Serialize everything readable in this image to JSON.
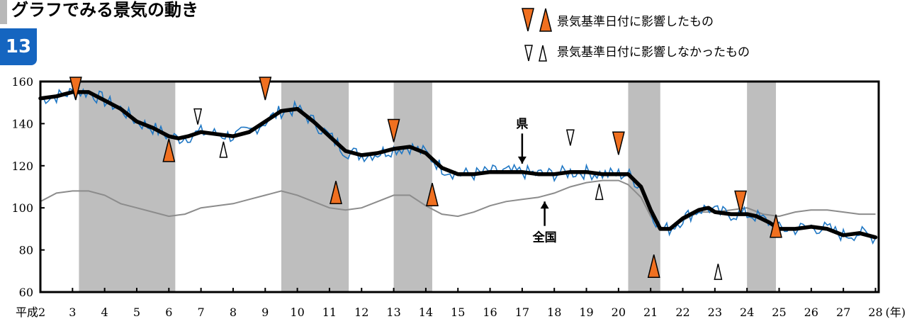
{
  "page": {
    "title": "グラフでみる景気の動き",
    "figure_number": "13"
  },
  "colors": {
    "recession_band": "#bebebe",
    "prefecture_raw": "#1f77c4",
    "prefecture_trend": "#000000",
    "national": "#8c8c8c",
    "marker_filled": "#f07020"
  },
  "legend": {
    "filled_label": "景気基準日付に影響したもの",
    "hollow_label": "景気基準日付に影響しなかったもの"
  },
  "chart_data": {
    "type": "line",
    "xlabel_unit": "(年)",
    "ylim": [
      60,
      160
    ],
    "xlim": [
      2.0,
      28.1
    ],
    "y_ticks": [
      60,
      80,
      100,
      120,
      140,
      160
    ],
    "x_ticks": [
      {
        "v": 2,
        "label": "平成2"
      },
      {
        "v": 3,
        "label": "3"
      },
      {
        "v": 4,
        "label": "4"
      },
      {
        "v": 5,
        "label": "5"
      },
      {
        "v": 6,
        "label": "6"
      },
      {
        "v": 7,
        "label": "7"
      },
      {
        "v": 8,
        "label": "8"
      },
      {
        "v": 9,
        "label": "9"
      },
      {
        "v": 10,
        "label": "10"
      },
      {
        "v": 11,
        "label": "11"
      },
      {
        "v": 12,
        "label": "12"
      },
      {
        "v": 13,
        "label": "13"
      },
      {
        "v": 14,
        "label": "14"
      },
      {
        "v": 15,
        "label": "15"
      },
      {
        "v": 16,
        "label": "16"
      },
      {
        "v": 17,
        "label": "17"
      },
      {
        "v": 18,
        "label": "18"
      },
      {
        "v": 19,
        "label": "19"
      },
      {
        "v": 20,
        "label": "20"
      },
      {
        "v": 21,
        "label": "21"
      },
      {
        "v": 22,
        "label": "22"
      },
      {
        "v": 23,
        "label": "23"
      },
      {
        "v": 24,
        "label": "24"
      },
      {
        "v": 25,
        "label": "25"
      },
      {
        "v": 26,
        "label": "26"
      },
      {
        "v": 27,
        "label": "27"
      },
      {
        "v": 28,
        "label": "28"
      }
    ],
    "shaded_periods": [
      [
        3.2,
        6.2
      ],
      [
        9.5,
        11.6
      ],
      [
        13.0,
        14.2
      ],
      [
        20.3,
        21.3
      ],
      [
        24.0,
        24.9
      ]
    ],
    "series": [
      {
        "name": "県",
        "style": "trend",
        "points": [
          [
            2.0,
            152
          ],
          [
            2.5,
            153
          ],
          [
            3.0,
            155
          ],
          [
            3.5,
            155
          ],
          [
            4.0,
            151
          ],
          [
            4.5,
            147
          ],
          [
            5.0,
            141
          ],
          [
            5.5,
            138
          ],
          [
            6.0,
            134
          ],
          [
            6.3,
            133
          ],
          [
            6.6,
            134
          ],
          [
            7.0,
            136
          ],
          [
            7.5,
            135
          ],
          [
            8.0,
            134
          ],
          [
            8.5,
            136
          ],
          [
            9.0,
            141
          ],
          [
            9.5,
            146
          ],
          [
            10.0,
            147
          ],
          [
            10.5,
            141
          ],
          [
            11.0,
            134
          ],
          [
            11.5,
            127
          ],
          [
            12.0,
            125
          ],
          [
            12.5,
            126
          ],
          [
            13.0,
            128
          ],
          [
            13.5,
            129
          ],
          [
            14.0,
            126
          ],
          [
            14.5,
            119
          ],
          [
            15.0,
            116
          ],
          [
            15.5,
            116
          ],
          [
            16.0,
            117
          ],
          [
            16.5,
            117
          ],
          [
            17.0,
            117
          ],
          [
            17.5,
            116
          ],
          [
            18.0,
            116
          ],
          [
            18.5,
            117
          ],
          [
            19.0,
            117
          ],
          [
            19.5,
            116
          ],
          [
            20.0,
            116
          ],
          [
            20.3,
            116
          ],
          [
            20.7,
            110
          ],
          [
            21.0,
            99
          ],
          [
            21.3,
            90
          ],
          [
            21.6,
            90
          ],
          [
            22.0,
            95
          ],
          [
            22.5,
            99
          ],
          [
            22.8,
            100
          ],
          [
            23.0,
            98
          ],
          [
            23.5,
            97
          ],
          [
            24.0,
            97
          ],
          [
            24.3,
            96
          ],
          [
            24.7,
            93
          ],
          [
            25.0,
            90
          ],
          [
            25.5,
            90
          ],
          [
            26.0,
            91
          ],
          [
            26.5,
            90
          ],
          [
            27.0,
            87
          ],
          [
            27.5,
            88
          ],
          [
            28.0,
            86
          ]
        ]
      },
      {
        "name": "全国",
        "style": "national",
        "points": [
          [
            2.0,
            103
          ],
          [
            2.5,
            107
          ],
          [
            3.0,
            108
          ],
          [
            3.5,
            108
          ],
          [
            4.0,
            106
          ],
          [
            4.5,
            102
          ],
          [
            5.0,
            100
          ],
          [
            5.5,
            98
          ],
          [
            6.0,
            96
          ],
          [
            6.5,
            97
          ],
          [
            7.0,
            100
          ],
          [
            7.5,
            101
          ],
          [
            8.0,
            102
          ],
          [
            8.5,
            104
          ],
          [
            9.0,
            106
          ],
          [
            9.5,
            108
          ],
          [
            10.0,
            106
          ],
          [
            10.5,
            103
          ],
          [
            11.0,
            100
          ],
          [
            11.5,
            99
          ],
          [
            12.0,
            100
          ],
          [
            12.5,
            103
          ],
          [
            13.0,
            106
          ],
          [
            13.5,
            106
          ],
          [
            14.0,
            101
          ],
          [
            14.5,
            97
          ],
          [
            15.0,
            96
          ],
          [
            15.5,
            98
          ],
          [
            16.0,
            101
          ],
          [
            16.5,
            103
          ],
          [
            17.0,
            104
          ],
          [
            17.5,
            105
          ],
          [
            18.0,
            107
          ],
          [
            18.5,
            110
          ],
          [
            19.0,
            112
          ],
          [
            19.5,
            113
          ],
          [
            20.0,
            113
          ],
          [
            20.3,
            111
          ],
          [
            20.7,
            105
          ],
          [
            21.0,
            96
          ],
          [
            21.3,
            90
          ],
          [
            21.6,
            90
          ],
          [
            22.0,
            94
          ],
          [
            22.5,
            98
          ],
          [
            23.0,
            98
          ],
          [
            23.5,
            99
          ],
          [
            24.0,
            100
          ],
          [
            24.5,
            97
          ],
          [
            25.0,
            96
          ],
          [
            25.5,
            98
          ],
          [
            26.0,
            99
          ],
          [
            26.5,
            99
          ],
          [
            27.0,
            98
          ],
          [
            27.5,
            97
          ],
          [
            28.0,
            97
          ]
        ]
      }
    ],
    "markers": [
      {
        "x": 3.1,
        "y": 162,
        "dir": "down",
        "filled": true
      },
      {
        "x": 6.0,
        "y": 122,
        "dir": "up",
        "filled": true
      },
      {
        "x": 9.0,
        "y": 162,
        "dir": "down",
        "filled": true
      },
      {
        "x": 11.2,
        "y": 102,
        "dir": "up",
        "filled": true
      },
      {
        "x": 13.0,
        "y": 142,
        "dir": "down",
        "filled": true
      },
      {
        "x": 14.2,
        "y": 101,
        "dir": "up",
        "filled": true
      },
      {
        "x": 20.0,
        "y": 136,
        "dir": "down",
        "filled": true
      },
      {
        "x": 21.1,
        "y": 67,
        "dir": "up",
        "filled": true
      },
      {
        "x": 23.8,
        "y": 108,
        "dir": "down",
        "filled": true
      },
      {
        "x": 24.9,
        "y": 86,
        "dir": "up",
        "filled": true
      },
      {
        "x": 6.9,
        "y": 147,
        "dir": "down",
        "filled": false
      },
      {
        "x": 7.7,
        "y": 124,
        "dir": "up",
        "filled": false
      },
      {
        "x": 18.5,
        "y": 137,
        "dir": "down",
        "filled": false
      },
      {
        "x": 19.4,
        "y": 104,
        "dir": "up",
        "filled": false
      },
      {
        "x": 23.1,
        "y": 66,
        "dir": "up",
        "filled": false
      }
    ],
    "annotations": [
      {
        "text": "県",
        "x": 17.0,
        "y": 138,
        "arrow": "down",
        "arrow_to": 121
      },
      {
        "text": "全国",
        "x": 17.7,
        "y": 84,
        "arrow": "up",
        "arrow_to": 103
      }
    ]
  }
}
